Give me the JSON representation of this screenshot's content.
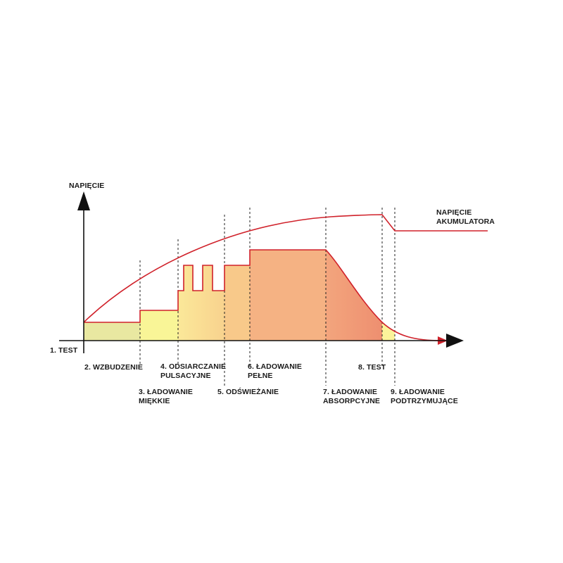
{
  "axis": {
    "y_label": "NAPIĘCIE",
    "battery_voltage_label": [
      "NAPIĘCIE",
      "AKUMULATORA"
    ]
  },
  "stages": [
    {
      "id": "1",
      "lines": [
        "1. TEST"
      ]
    },
    {
      "id": "2",
      "lines": [
        "2. WZBUDZENIE"
      ]
    },
    {
      "id": "3",
      "lines": [
        "3. ŁADOWANIE",
        "MIĘKKIE"
      ]
    },
    {
      "id": "4",
      "lines": [
        "4. ODSIARCZANIE",
        "PULSACYJNE"
      ]
    },
    {
      "id": "5",
      "lines": [
        "5. ODŚWIEŻANIE"
      ]
    },
    {
      "id": "6",
      "lines": [
        "6. ŁADOWANIE",
        "PEŁNE"
      ]
    },
    {
      "id": "7",
      "lines": [
        "7. ŁADOWANIE",
        "ABSORPCYJNE"
      ]
    },
    {
      "id": "8",
      "lines": [
        "8. TEST"
      ]
    },
    {
      "id": "9",
      "lines": [
        "9. ŁADOWANIE",
        "PODTRZYMUJĄCE"
      ]
    }
  ],
  "colors": {
    "curve": "#d0212a",
    "fill_stage2": "#e9e8a1",
    "fill_stage3": "#f9f597",
    "fill_stage4_start": "#fbe899",
    "fill_stage4_end": "#f8d28e",
    "fill_stage5": "#f8c98a",
    "fill_stage6": "#f5b283",
    "fill_stage7_start": "#f3a57d",
    "fill_stage7_end": "#ee8f70",
    "fill_stage9": "#fbf39a"
  }
}
